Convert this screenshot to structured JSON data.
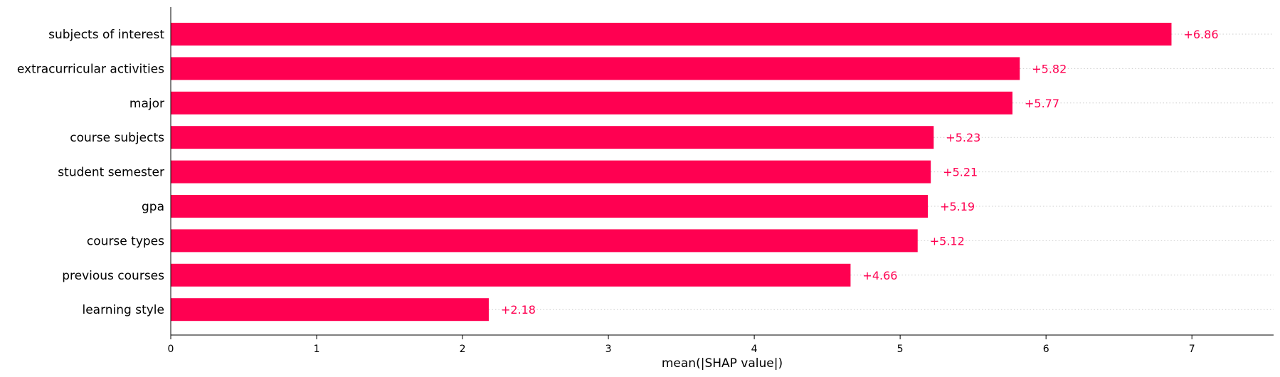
{
  "chart_data": {
    "type": "bar",
    "orientation": "horizontal",
    "categories": [
      "subjects of interest",
      "extracurricular activities",
      "major",
      "course subjects",
      "student semester",
      "gpa",
      "course types",
      "previous courses",
      "learning style"
    ],
    "values": [
      6.86,
      5.82,
      5.77,
      5.23,
      5.21,
      5.19,
      5.12,
      4.66,
      2.18
    ],
    "value_labels": [
      "+6.86",
      "+5.82",
      "+5.77",
      "+5.23",
      "+5.21",
      "+5.19",
      "+5.12",
      "+4.66",
      "+2.18"
    ],
    "xlabel": "mean(|SHAP value|)",
    "xticks": [
      0,
      1,
      2,
      3,
      4,
      5,
      6,
      7
    ],
    "xlim": [
      0,
      7.56
    ],
    "bar_color": "#ff0051",
    "label_color": "#ff0051",
    "grid_lines": "dotted"
  }
}
